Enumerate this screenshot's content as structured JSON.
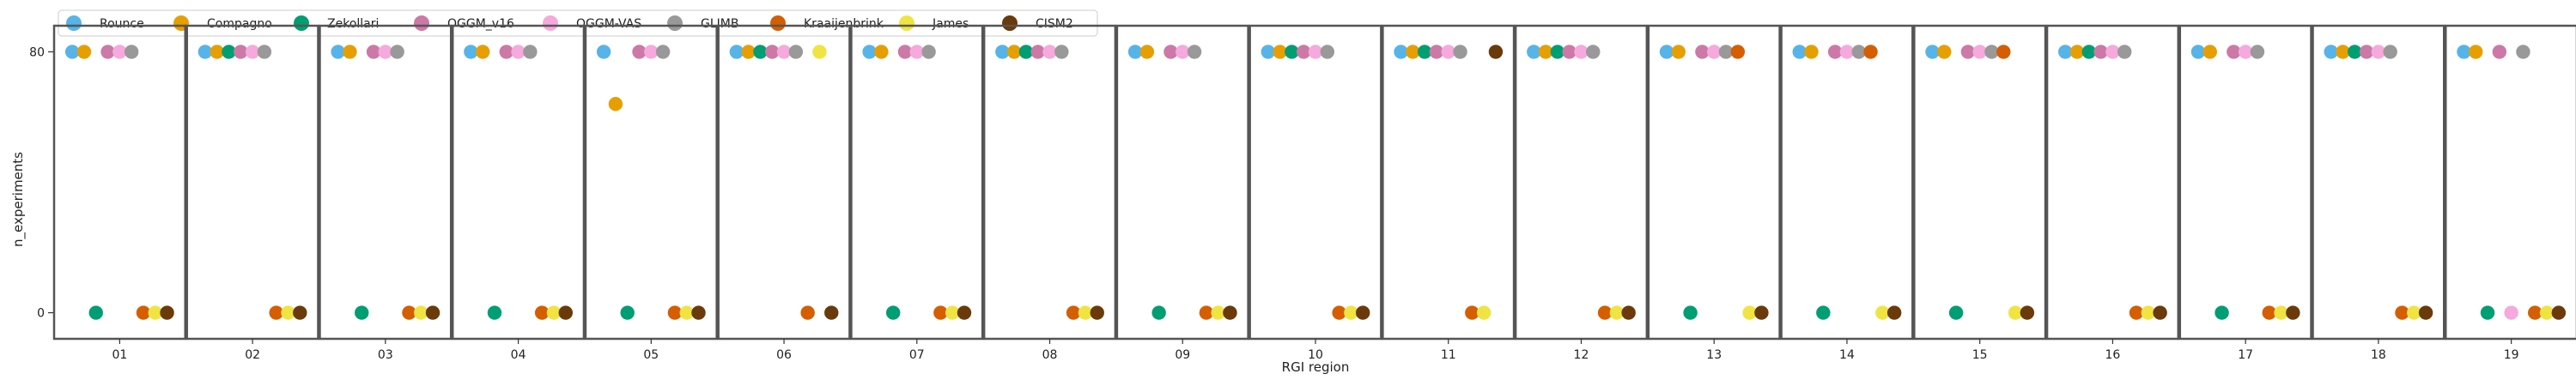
{
  "chart_data": {
    "type": "scatter",
    "xlabel": "RGI region",
    "ylabel": "n_experiments",
    "yticks": [
      0,
      80
    ],
    "ylim": [
      -8,
      88
    ],
    "legend_position": "top",
    "regions": [
      "01",
      "02",
      "03",
      "04",
      "05",
      "06",
      "07",
      "08",
      "09",
      "10",
      "11",
      "12",
      "13",
      "14",
      "15",
      "16",
      "17",
      "18",
      "19"
    ],
    "series": [
      {
        "name": "Rounce",
        "color": "#56B4E9",
        "values": [
          80,
          80,
          80,
          80,
          80,
          80,
          80,
          80,
          80,
          80,
          80,
          80,
          80,
          80,
          80,
          80,
          80,
          80,
          80
        ]
      },
      {
        "name": "Compagno",
        "color": "#E69F00",
        "values": [
          80,
          80,
          80,
          80,
          64,
          80,
          80,
          80,
          80,
          80,
          80,
          80,
          80,
          80,
          80,
          80,
          80,
          80,
          80
        ]
      },
      {
        "name": "Zekollari",
        "color": "#009E73",
        "values": [
          0,
          80,
          0,
          0,
          0,
          80,
          0,
          80,
          0,
          80,
          80,
          80,
          0,
          0,
          0,
          80,
          0,
          80,
          0
        ]
      },
      {
        "name": "OGGM_v16",
        "color": "#CC79A7",
        "values": [
          80,
          80,
          80,
          80,
          80,
          80,
          80,
          80,
          80,
          80,
          80,
          80,
          80,
          80,
          80,
          80,
          80,
          80,
          80
        ]
      },
      {
        "name": "OGGM-VAS",
        "color": "#F5A9DC",
        "values": [
          80,
          80,
          80,
          80,
          80,
          80,
          80,
          80,
          80,
          80,
          80,
          80,
          80,
          80,
          80,
          80,
          80,
          80,
          0
        ]
      },
      {
        "name": "GLIMB",
        "color": "#999999",
        "values": [
          80,
          80,
          80,
          80,
          80,
          80,
          80,
          80,
          80,
          80,
          80,
          80,
          80,
          80,
          80,
          80,
          80,
          80,
          80
        ]
      },
      {
        "name": "Kraaijenbrink",
        "color": "#D55E00",
        "values": [
          0,
          0,
          0,
          0,
          0,
          0,
          0,
          0,
          0,
          0,
          0,
          0,
          80,
          80,
          80,
          0,
          0,
          0,
          0
        ]
      },
      {
        "name": "James",
        "color": "#F0E442",
        "values": [
          0,
          0,
          0,
          0,
          0,
          80,
          0,
          0,
          0,
          0,
          0,
          0,
          0,
          0,
          0,
          0,
          0,
          0,
          0
        ]
      },
      {
        "name": "CISM2",
        "color": "#6B3A0A",
        "values": [
          0,
          0,
          0,
          0,
          0,
          0,
          0,
          0,
          0,
          0,
          80,
          0,
          0,
          0,
          0,
          0,
          0,
          0,
          0
        ]
      }
    ]
  }
}
